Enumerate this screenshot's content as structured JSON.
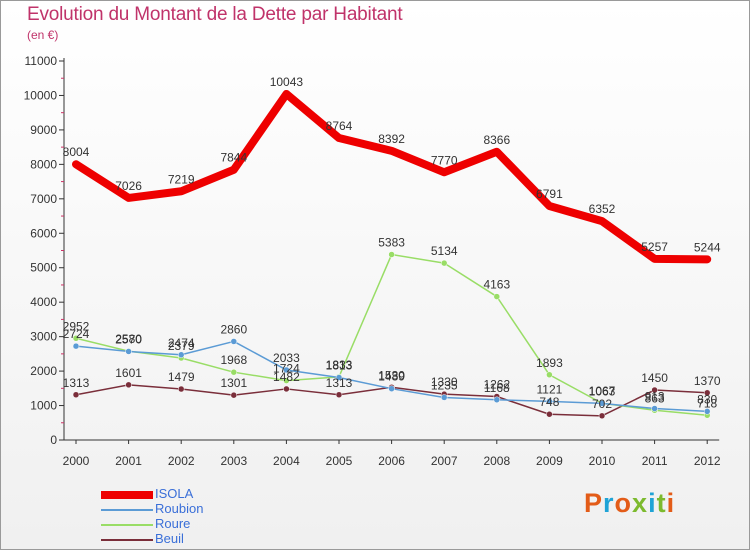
{
  "title": "Evolution du Montant de la Dette par Habitant",
  "subtitle": "(en €)",
  "logo": {
    "text": "Proxiti",
    "colors": [
      "#e35c18",
      "#1fa3d6",
      "#e35c18",
      "#7cba2e",
      "#1fa3d6",
      "#7cba2e",
      "#e35c18"
    ]
  },
  "chart_data": {
    "type": "line",
    "title": "Evolution du Montant de la Dette par Habitant",
    "ylabel": "(en €)",
    "xlabel": "",
    "ylim": [
      0,
      11000
    ],
    "yticks": [
      0,
      1000,
      2000,
      3000,
      4000,
      5000,
      6000,
      7000,
      8000,
      9000,
      10000,
      11000
    ],
    "grid": false,
    "legend_position": "bottom-left",
    "categories": [
      "2000",
      "2001",
      "2002",
      "2003",
      "2004",
      "2005",
      "2006",
      "2007",
      "2008",
      "2009",
      "2010",
      "2011",
      "2012"
    ],
    "series": [
      {
        "name": "ISOLA",
        "color": "#ee0000",
        "values": [
          8004,
          7026,
          7219,
          7844,
          10043,
          8764,
          8392,
          7770,
          8366,
          6791,
          6352,
          5257,
          5244
        ]
      },
      {
        "name": "Roubion",
        "color": "#5b9bd5",
        "values": [
          2724,
          2570,
          2474,
          2860,
          2033,
          1813,
          1489,
          1235,
          1168,
          1121,
          1063,
          913,
          830
        ]
      },
      {
        "name": "Roure",
        "color": "#99dd66",
        "values": [
          2952,
          2580,
          2379,
          1968,
          1724,
          1833,
          5383,
          5134,
          4163,
          1893,
          1067,
          863,
          718
        ]
      },
      {
        "name": "Beuil",
        "color": "#7a2e3a",
        "values": [
          1313,
          1601,
          1479,
          1301,
          1482,
          1313,
          1530,
          1330,
          1262,
          748,
          702,
          1450,
          1370
        ]
      }
    ]
  }
}
